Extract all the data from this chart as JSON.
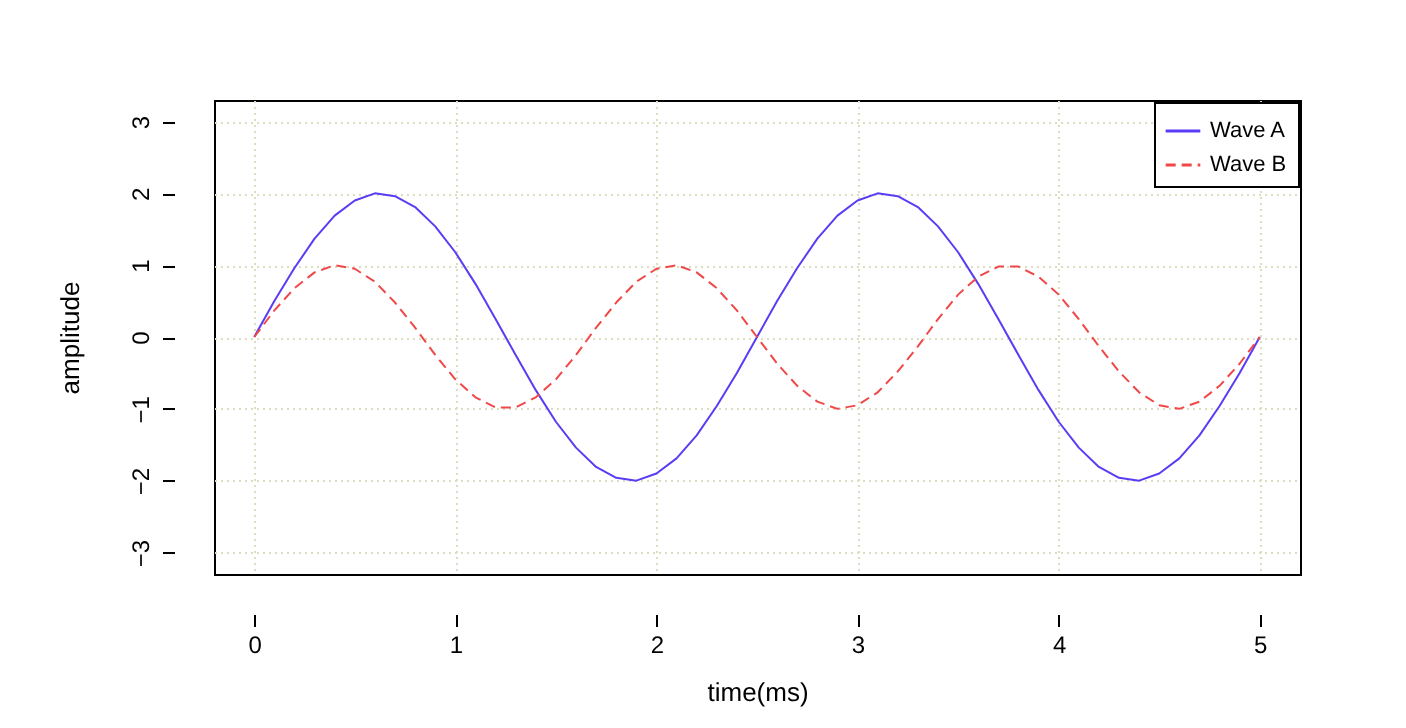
{
  "chart_data": {
    "type": "line",
    "xlabel": "time(ms)",
    "ylabel": "amplitude",
    "xlim": [
      -0.2,
      5.2
    ],
    "ylim": [
      -3.3,
      3.3
    ],
    "xticks": [
      0,
      1,
      2,
      3,
      4,
      5
    ],
    "yticks": [
      -3,
      -2,
      -1,
      0,
      1,
      2,
      3
    ],
    "grid": true,
    "legend": "top right",
    "x": [
      0,
      0.1,
      0.2,
      0.3,
      0.4,
      0.5,
      0.6,
      0.7,
      0.8,
      0.9,
      1,
      1.1,
      1.2,
      1.3,
      1.4,
      1.5,
      1.6,
      1.7,
      1.8,
      1.9,
      2,
      2.1,
      2.2,
      2.3,
      2.4,
      2.5,
      2.6,
      2.7,
      2.8,
      2.9,
      3,
      3.1,
      3.2,
      3.3,
      3.4,
      3.5,
      3.6,
      3.7,
      3.8,
      3.9,
      4,
      4.1,
      4.2,
      4.3,
      4.4,
      4.5,
      4.6,
      4.7,
      4.8,
      4.9,
      5
    ],
    "series": [
      {
        "name": "Wave A",
        "color": "#5a3cf5",
        "line_style": "solid",
        "values": [
          0,
          0.5,
          0.96,
          1.37,
          1.69,
          1.9,
          2,
          1.96,
          1.81,
          1.54,
          1.18,
          0.74,
          0.25,
          -0.25,
          -0.74,
          -1.18,
          -1.54,
          -1.81,
          -1.96,
          -2,
          -1.9,
          -1.69,
          -1.37,
          -0.96,
          -0.5,
          0,
          0.5,
          0.96,
          1.37,
          1.69,
          1.9,
          2,
          1.96,
          1.81,
          1.54,
          1.18,
          0.74,
          0.25,
          -0.25,
          -0.74,
          -1.18,
          -1.54,
          -1.81,
          -1.96,
          -2,
          -1.9,
          -1.69,
          -1.37,
          -0.96,
          -0.5,
          0
        ]
      },
      {
        "name": "Wave B",
        "color": "#f04848",
        "line_style": "dashed",
        "values": [
          0,
          0.37,
          0.68,
          0.9,
          1,
          0.95,
          0.77,
          0.48,
          0.13,
          -0.25,
          -0.59,
          -0.84,
          -0.98,
          -0.98,
          -0.84,
          -0.59,
          -0.25,
          0.13,
          0.48,
          0.77,
          0.95,
          1,
          0.9,
          0.68,
          0.37,
          0,
          -0.37,
          -0.68,
          -0.9,
          -1,
          -0.95,
          -0.77,
          -0.48,
          -0.13,
          0.25,
          0.59,
          0.84,
          0.98,
          0.98,
          0.84,
          0.59,
          0.25,
          -0.13,
          -0.48,
          -0.77,
          -0.95,
          -1,
          -0.9,
          -0.68,
          -0.37,
          0
        ]
      }
    ]
  }
}
